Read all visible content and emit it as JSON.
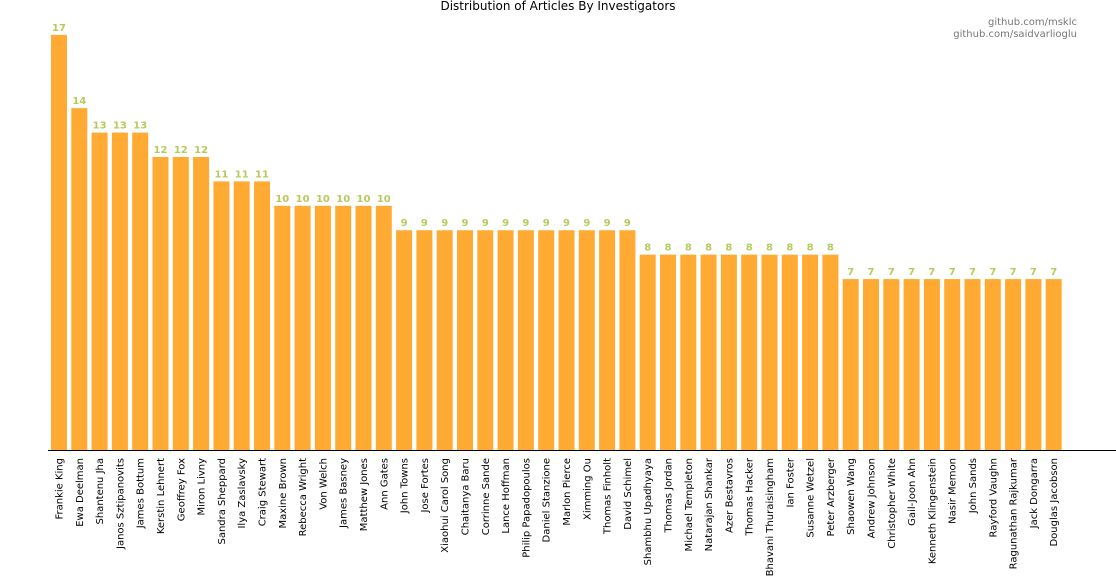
{
  "chart_data": {
    "type": "bar",
    "title": "Distribution of Articles By Investigators",
    "xlabel": "",
    "ylabel": "",
    "ylim": [
      0,
      17.2
    ],
    "grid": false,
    "credits": [
      "github.com/msklc",
      "github.com/saidvarlioglu"
    ],
    "colors": {
      "bar": "#FFAA33",
      "data_label": "#B5CC5C",
      "baseline": "#000000"
    },
    "categories": [
      "Frankie King",
      "Ewa Deelman",
      "Shantenu Jha",
      "Janos Sztipanovits",
      "James Bottum",
      "Kerstin Lehnert",
      "Geoffrey Fox",
      "Miron Livny",
      "Sandra Sheppard",
      "Ilya Zaslavsky",
      "Craig Stewart",
      "Maxine Brown",
      "Rebecca Wright",
      "Von Welch",
      "James Basney",
      "Matthew Jones",
      "Ann Gates",
      "John Towns",
      "Jose Fortes",
      "Xiaohui Carol Song",
      "Chaitanya Baru",
      "Corrinne Sande",
      "Lance Hoffman",
      "Philip Papadopoulos",
      "Daniel Stanzione",
      "Marlon Pierce",
      "Ximming Ou",
      "Thomas Finholt",
      "David Schimel",
      "Shambhu Upadhyaya",
      "Thomas Jordan",
      "Michael Templeton",
      "Natarajan Shankar",
      "Azer Bestavros",
      "Thomas Hacker",
      "Bhavani Thuraisingham",
      "Ian Foster",
      "Susanne Wetzel",
      "Peter Arzberger",
      "Shaowen Wang",
      "Andrew Johnson",
      "Christopher White",
      "Gail-Joon Ahn",
      "Kenneth Klingenstein",
      "Nasir Memon",
      "John Sands",
      "Rayford Vaughn",
      "Ragunathan Rajkumar",
      "Jack Dongarra",
      "Douglas Jacobson"
    ],
    "values": [
      17,
      14,
      13,
      13,
      13,
      12,
      12,
      12,
      11,
      11,
      11,
      10,
      10,
      10,
      10,
      10,
      10,
      9,
      9,
      9,
      9,
      9,
      9,
      9,
      9,
      9,
      9,
      9,
      9,
      8,
      8,
      8,
      8,
      8,
      8,
      8,
      8,
      8,
      8,
      7,
      7,
      7,
      7,
      7,
      7,
      7,
      7,
      7,
      7,
      7
    ]
  }
}
